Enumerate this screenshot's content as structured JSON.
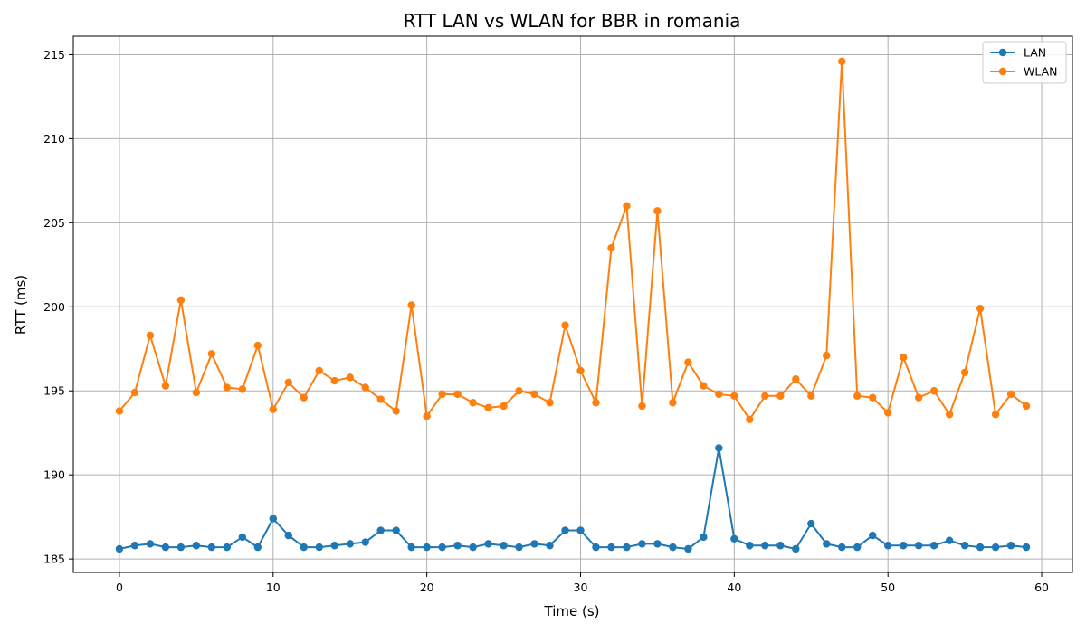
{
  "chart_data": {
    "type": "line",
    "title": "RTT LAN vs WLAN for BBR in romania",
    "xlabel": "Time (s)",
    "ylabel": "RTT (ms)",
    "xlim": [
      -3,
      62
    ],
    "ylim": [
      184.2,
      216.1
    ],
    "xticks": [
      0,
      10,
      20,
      30,
      40,
      50,
      60
    ],
    "yticks": [
      185,
      190,
      195,
      200,
      205,
      210,
      215
    ],
    "grid": true,
    "legend": "top-right",
    "x": [
      0,
      1,
      2,
      3,
      4,
      5,
      6,
      7,
      8,
      9,
      10,
      11,
      12,
      13,
      14,
      15,
      16,
      17,
      18,
      19,
      20,
      21,
      22,
      23,
      24,
      25,
      26,
      27,
      28,
      29,
      30,
      31,
      32,
      33,
      34,
      35,
      36,
      37,
      38,
      39,
      40,
      41,
      42,
      43,
      44,
      45,
      46,
      47,
      48,
      49,
      50,
      51,
      52,
      53,
      54,
      55,
      56,
      57,
      58,
      59
    ],
    "series": [
      {
        "name": "LAN",
        "color": "#1f77b4",
        "values": [
          185.6,
          185.8,
          185.9,
          185.7,
          185.7,
          185.8,
          185.7,
          185.7,
          186.3,
          185.7,
          187.4,
          186.4,
          185.7,
          185.7,
          185.8,
          185.9,
          186.0,
          186.7,
          186.7,
          185.7,
          185.7,
          185.7,
          185.8,
          185.7,
          185.9,
          185.8,
          185.7,
          185.9,
          185.8,
          186.7,
          186.7,
          185.7,
          185.7,
          185.7,
          185.9,
          185.9,
          185.7,
          185.6,
          186.3,
          191.6,
          186.2,
          185.8,
          185.8,
          185.8,
          185.6,
          187.1,
          185.9,
          185.7,
          185.7,
          186.4,
          185.8,
          185.8,
          185.8,
          185.8,
          186.1,
          185.8,
          185.7,
          185.7,
          185.8,
          185.7
        ]
      },
      {
        "name": "WLAN",
        "color": "#ff7f0e",
        "values": [
          193.8,
          194.9,
          198.3,
          195.3,
          200.4,
          194.9,
          197.2,
          195.2,
          195.1,
          197.7,
          193.9,
          195.5,
          194.6,
          196.2,
          195.6,
          195.8,
          195.2,
          194.5,
          193.8,
          200.1,
          193.5,
          194.8,
          194.8,
          194.3,
          194.0,
          194.1,
          195.0,
          194.8,
          194.3,
          198.9,
          196.2,
          194.3,
          203.5,
          206.0,
          194.1,
          205.7,
          194.3,
          196.7,
          195.3,
          194.8,
          194.7,
          193.3,
          194.7,
          194.7,
          195.7,
          194.7,
          197.1,
          214.6,
          194.7,
          194.6,
          193.7,
          197.0,
          194.6,
          195.0,
          193.6,
          196.1,
          199.9,
          193.6,
          194.8,
          194.1
        ]
      }
    ]
  }
}
